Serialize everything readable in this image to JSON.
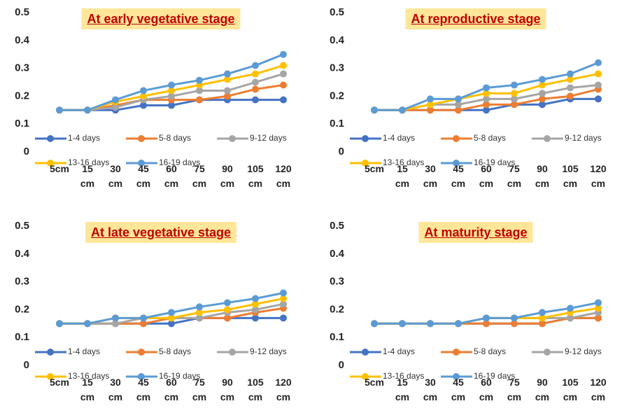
{
  "chart_data": [
    {
      "type": "line",
      "title": "At early vegetative stage",
      "categories": [
        "5cm",
        "15 cm",
        "30 cm",
        "45 cm",
        "60 cm",
        "75 cm",
        "90 cm",
        "105 cm",
        "120 cm"
      ],
      "ylim": [
        0,
        0.5
      ],
      "yticks": [
        0,
        0.1,
        0.2,
        0.3,
        0.4,
        0.5
      ],
      "series": [
        {
          "name": "1-4 days",
          "color": "#4472c4",
          "values": [
            0.15,
            0.15,
            0.15,
            0.167,
            0.167,
            0.187,
            0.187,
            0.187,
            0.187
          ]
        },
        {
          "name": "5-8 days",
          "color": "#ed7d31",
          "values": [
            0.15,
            0.15,
            0.167,
            0.187,
            0.187,
            0.187,
            0.2,
            0.225,
            0.24
          ]
        },
        {
          "name": "9-12 days",
          "color": "#a5a5a5",
          "values": [
            0.15,
            0.15,
            0.16,
            0.187,
            0.2,
            0.22,
            0.22,
            0.25,
            0.28
          ]
        },
        {
          "name": "13-16 days",
          "color": "#ffc000",
          "values": [
            0.15,
            0.15,
            0.18,
            0.2,
            0.22,
            0.24,
            0.26,
            0.28,
            0.31
          ]
        },
        {
          "name": "16-19 days",
          "color": "#5b9bd5",
          "values": [
            0.15,
            0.15,
            0.187,
            0.22,
            0.24,
            0.257,
            0.28,
            0.31,
            0.35
          ]
        }
      ]
    },
    {
      "type": "line",
      "title": "At reproductive stage",
      "categories": [
        "5cm",
        "15 cm",
        "30 cm",
        "45 cm",
        "60 cm",
        "75 cm",
        "90 cm",
        "105 cm",
        "120 cm"
      ],
      "ylim": [
        0,
        0.5
      ],
      "yticks": [
        0,
        0.1,
        0.2,
        0.3,
        0.4,
        0.5
      ],
      "series": [
        {
          "name": "1-4 days",
          "color": "#4472c4",
          "values": [
            0.15,
            0.15,
            0.15,
            0.15,
            0.15,
            0.17,
            0.17,
            0.19,
            0.19
          ]
        },
        {
          "name": "5-8 days",
          "color": "#ed7d31",
          "values": [
            0.15,
            0.15,
            0.15,
            0.15,
            0.17,
            0.17,
            0.19,
            0.2,
            0.225
          ]
        },
        {
          "name": "9-12 days",
          "color": "#a5a5a5",
          "values": [
            0.15,
            0.15,
            0.17,
            0.17,
            0.19,
            0.19,
            0.21,
            0.23,
            0.24
          ]
        },
        {
          "name": "13-16 days",
          "color": "#ffc000",
          "values": [
            0.15,
            0.15,
            0.17,
            0.19,
            0.21,
            0.21,
            0.24,
            0.26,
            0.28
          ]
        },
        {
          "name": "16-19 days",
          "color": "#5b9bd5",
          "values": [
            0.15,
            0.15,
            0.19,
            0.19,
            0.23,
            0.24,
            0.26,
            0.28,
            0.32
          ]
        }
      ]
    },
    {
      "type": "line",
      "title": "At late vegetative stage",
      "categories": [
        "5cm",
        "15 cm",
        "30 cm",
        "45 cm",
        "60 cm",
        "75 cm",
        "90 cm",
        "105 cm",
        "120 cm"
      ],
      "ylim": [
        0,
        0.5
      ],
      "yticks": [
        0,
        0.1,
        0.2,
        0.3,
        0.4,
        0.5
      ],
      "series": [
        {
          "name": "1-4 days",
          "color": "#4472c4",
          "values": [
            0.15,
            0.15,
            0.15,
            0.15,
            0.15,
            0.17,
            0.17,
            0.17,
            0.17
          ]
        },
        {
          "name": "5-8 days",
          "color": "#ed7d31",
          "values": [
            0.15,
            0.15,
            0.15,
            0.15,
            0.17,
            0.17,
            0.17,
            0.19,
            0.205
          ]
        },
        {
          "name": "9-12 days",
          "color": "#a5a5a5",
          "values": [
            0.15,
            0.15,
            0.15,
            0.17,
            0.17,
            0.17,
            0.19,
            0.2,
            0.22
          ]
        },
        {
          "name": "13-16 days",
          "color": "#ffc000",
          "values": [
            0.15,
            0.15,
            0.17,
            0.17,
            0.17,
            0.19,
            0.2,
            0.22,
            0.24
          ]
        },
        {
          "name": "16-19 days",
          "color": "#5b9bd5",
          "values": [
            0.15,
            0.15,
            0.17,
            0.17,
            0.19,
            0.21,
            0.225,
            0.24,
            0.26
          ]
        }
      ]
    },
    {
      "type": "line",
      "title": "At maturity stage",
      "categories": [
        "5cm",
        "15 cm",
        "30 cm",
        "45 cm",
        "60 cm",
        "75 cm",
        "90 cm",
        "105 cm",
        "120 cm"
      ],
      "ylim": [
        0,
        0.5
      ],
      "yticks": [
        0,
        0.1,
        0.2,
        0.3,
        0.4,
        0.5
      ],
      "series": [
        {
          "name": "1-4 days",
          "color": "#4472c4",
          "values": [
            0.15,
            0.15,
            0.15,
            0.15,
            0.15,
            0.15,
            0.15,
            0.17,
            0.17
          ]
        },
        {
          "name": "5-8 days",
          "color": "#ed7d31",
          "values": [
            0.15,
            0.15,
            0.15,
            0.15,
            0.15,
            0.15,
            0.15,
            0.17,
            0.17
          ]
        },
        {
          "name": "9-12 days",
          "color": "#a5a5a5",
          "values": [
            0.15,
            0.15,
            0.15,
            0.15,
            0.17,
            0.17,
            0.17,
            0.17,
            0.19
          ]
        },
        {
          "name": "13-16 days",
          "color": "#ffc000",
          "values": [
            0.15,
            0.15,
            0.15,
            0.15,
            0.17,
            0.17,
            0.17,
            0.19,
            0.205
          ]
        },
        {
          "name": "16-19 days",
          "color": "#5b9bd5",
          "values": [
            0.15,
            0.15,
            0.15,
            0.15,
            0.17,
            0.17,
            0.19,
            0.205,
            0.225
          ]
        }
      ]
    }
  ]
}
